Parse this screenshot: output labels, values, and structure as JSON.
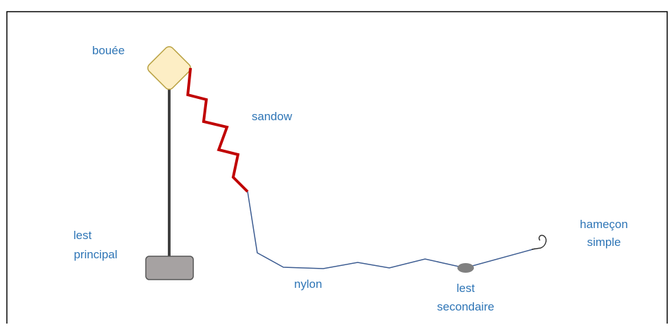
{
  "labels": {
    "buoy": "bouée",
    "bungee": "sandow",
    "main_weight": [
      "lest",
      "principal"
    ],
    "line": "nylon",
    "secondary_weight": [
      "lest",
      "secondaire"
    ],
    "hook": [
      "hameçon",
      "simple"
    ]
  }
}
